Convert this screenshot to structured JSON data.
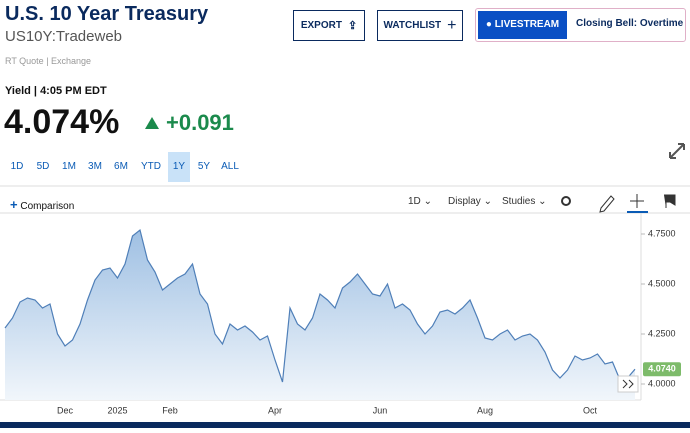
{
  "header": {
    "title": "U.S. 10 Year Treasury",
    "symbol": "US10Y:Tradeweb",
    "quote_source": "RT Quote | Exchange"
  },
  "buttons": {
    "export": "EXPORT",
    "watchlist": "WATCHLIST"
  },
  "livestream": {
    "button": "LIVESTREAM",
    "show": "Closing Bell: Overtime"
  },
  "quote": {
    "label": "Yield | 4:05 PM EDT",
    "value": "4.074%",
    "change": "+0.091"
  },
  "ranges": [
    "1D",
    "5D",
    "1M",
    "3M",
    "6M",
    "YTD",
    "1Y",
    "5Y",
    "ALL"
  ],
  "selected_range_index": 6,
  "toolbar": {
    "comparison": "Comparison",
    "interval": "1D",
    "display": "Display",
    "studies": "Studies"
  },
  "chart_data": {
    "type": "area",
    "categories": [
      null,
      null,
      null,
      null,
      null,
      null,
      null,
      null,
      "Dec",
      null,
      null,
      null,
      null,
      null,
      null,
      "2025",
      null,
      null,
      null,
      null,
      null,
      null,
      "Feb",
      null,
      null,
      null,
      null,
      null,
      null,
      null,
      null,
      null,
      null,
      null,
      null,
      null,
      "Apr",
      null,
      null,
      null,
      null,
      null,
      null,
      null,
      null,
      null,
      null,
      null,
      null,
      null,
      "Jun",
      null,
      null,
      null,
      null,
      null,
      null,
      null,
      null,
      null,
      null,
      null,
      null,
      null,
      "Aug",
      null,
      null,
      null,
      null,
      null,
      null,
      null,
      null,
      null,
      null,
      null,
      null,
      null,
      "Oct",
      null,
      null,
      null,
      null,
      null,
      null
    ],
    "values": [
      4.28,
      4.33,
      4.41,
      4.43,
      4.42,
      4.38,
      4.4,
      4.25,
      4.19,
      4.22,
      4.3,
      4.42,
      4.52,
      4.57,
      4.58,
      4.53,
      4.6,
      4.74,
      4.77,
      4.62,
      4.56,
      4.47,
      4.5,
      4.53,
      4.55,
      4.6,
      4.45,
      4.4,
      4.25,
      4.2,
      4.3,
      4.27,
      4.29,
      4.26,
      4.22,
      4.24,
      4.12,
      4.01,
      4.38,
      4.3,
      4.27,
      4.33,
      4.45,
      4.42,
      4.38,
      4.48,
      4.51,
      4.55,
      4.5,
      4.45,
      4.44,
      4.5,
      4.38,
      4.4,
      4.37,
      4.3,
      4.25,
      4.29,
      4.36,
      4.37,
      4.35,
      4.38,
      4.42,
      4.33,
      4.23,
      4.22,
      4.25,
      4.27,
      4.22,
      4.24,
      4.25,
      4.22,
      4.16,
      4.07,
      4.03,
      4.07,
      4.14,
      4.12,
      4.13,
      4.15,
      4.1,
      4.11,
      4.02,
      4.03,
      4.074
    ],
    "last_label": "4.0740",
    "color": "#4f7fb8",
    "ylim": [
      3.92,
      4.855
    ],
    "yticks": [
      {
        "value": 4,
        "label": "4.0000"
      },
      {
        "value": 4.25,
        "label": "4.2500"
      },
      {
        "value": 4.5,
        "label": "4.5000"
      },
      {
        "value": 4.75,
        "label": "4.7500"
      }
    ]
  }
}
